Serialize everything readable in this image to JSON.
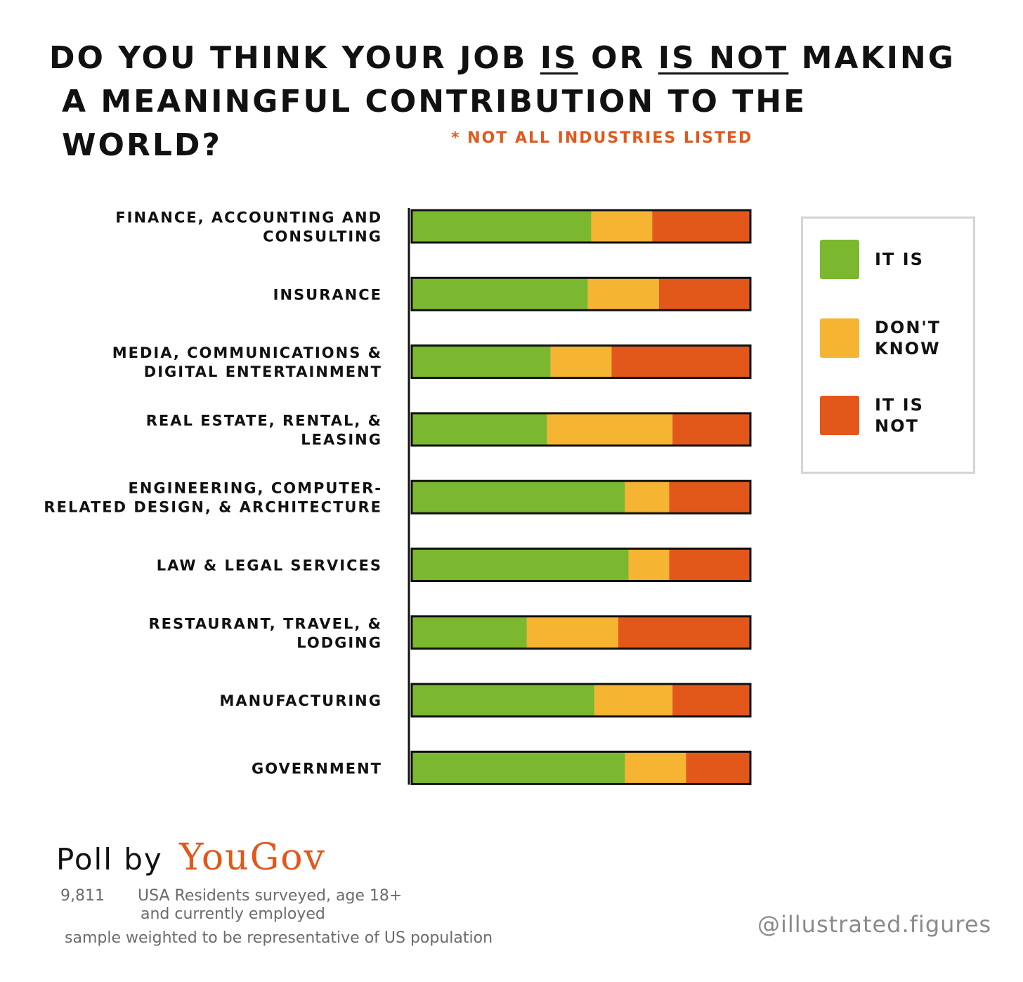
{
  "title": {
    "line1_pre": "Do you think your job ",
    "line1_is": "is",
    "line1_mid": " or ",
    "line1_isnot": "is not",
    "line1_post": " making",
    "line2": "a meaningful contribution to the world?"
  },
  "note": "* Not all industries listed",
  "legend": {
    "items": [
      {
        "label": "It is",
        "color": "#7cb82f"
      },
      {
        "label": "Don't\nknow",
        "color": "#f5b431"
      },
      {
        "label": "It is\nnot",
        "color": "#e2581b"
      }
    ]
  },
  "colors": {
    "yes": "#7cb82f",
    "dont_know": "#f5b431",
    "no": "#e2581b",
    "axis": "#111111"
  },
  "chart_data": {
    "type": "bar",
    "orientation": "horizontal",
    "stacked": true,
    "normalized": true,
    "categories": [
      [
        "Finance, accounting and",
        "consulting"
      ],
      [
        "Insurance"
      ],
      [
        "Media, communications &",
        "digital entertainment"
      ],
      [
        "Real estate, rental, &",
        "leasing"
      ],
      [
        "Engineering, computer-",
        "related design, & architecture"
      ],
      [
        "Law & legal services"
      ],
      [
        "Restaurant, travel, &",
        "lodging"
      ],
      [
        "Manufacturing"
      ],
      [
        "Government"
      ]
    ],
    "series": [
      {
        "name": "It is",
        "values": [
          53,
          52,
          41,
          40,
          63,
          64,
          34,
          54,
          63
        ]
      },
      {
        "name": "Don't know",
        "values": [
          18,
          21,
          18,
          37,
          13,
          12,
          27,
          23,
          18
        ]
      },
      {
        "name": "It is not",
        "values": [
          29,
          27,
          41,
          23,
          24,
          24,
          39,
          23,
          19
        ]
      }
    ],
    "xlim": [
      0,
      100
    ],
    "legend_position": "right",
    "grid": false
  },
  "footer": {
    "poll_label": "Poll by",
    "poll_brand": "YouGov",
    "line1_count": "9,811",
    "line1_text": "USA Residents surveyed, age 18+",
    "line2": "and currently employed",
    "line3": "sample weighted to be representative of US population",
    "handle": "@illustrated.figures"
  }
}
